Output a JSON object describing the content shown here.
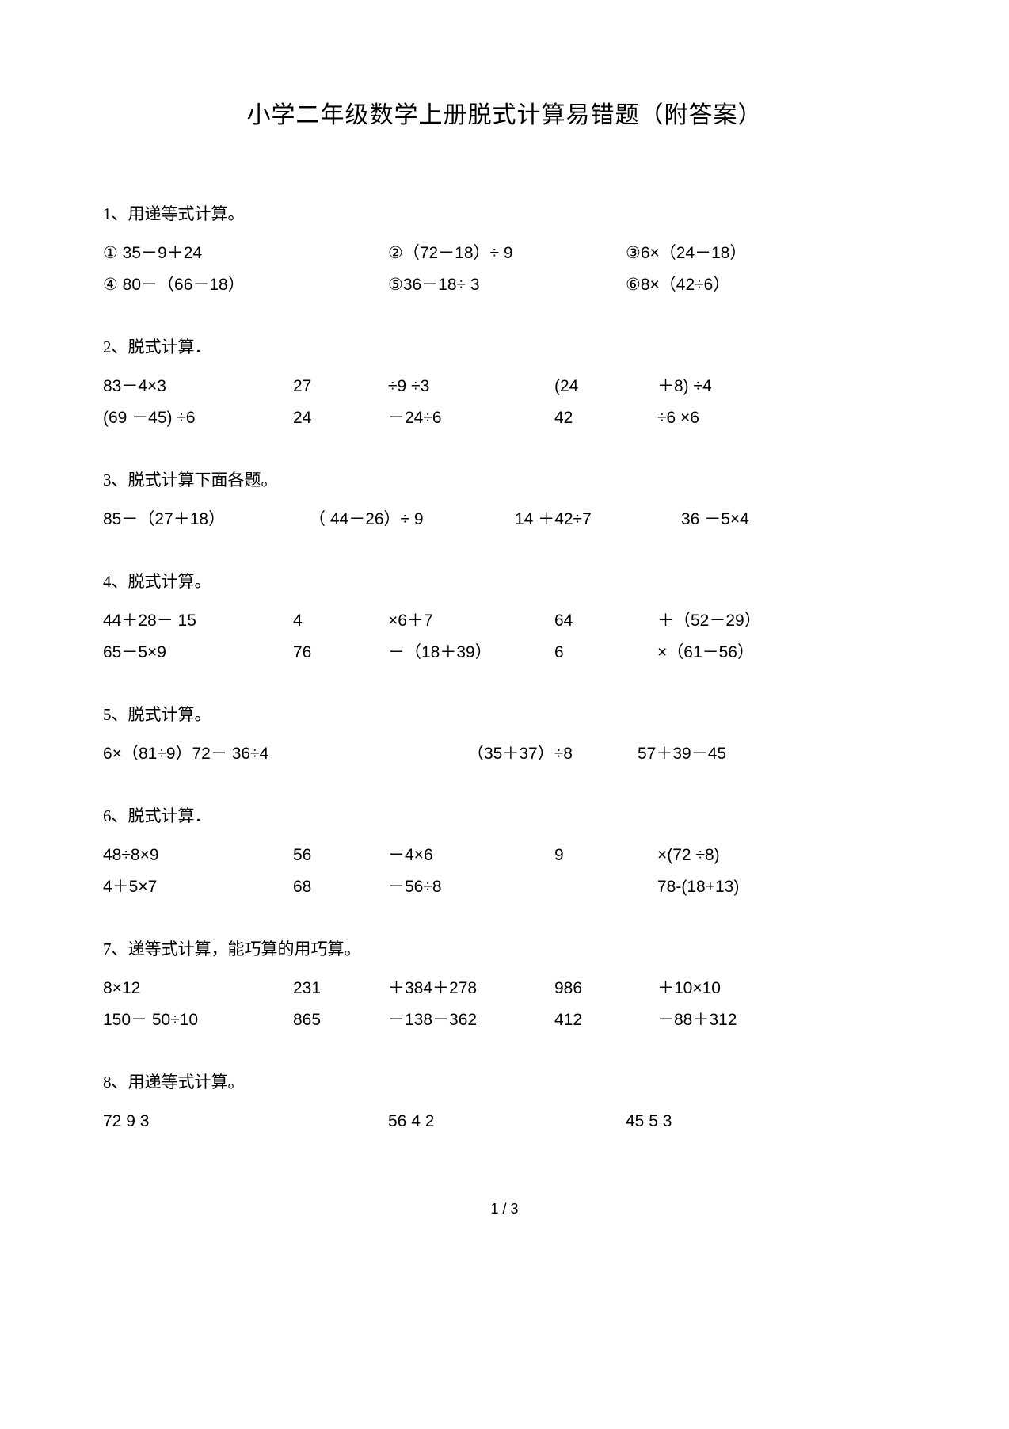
{
  "title": "小学二年级数学上册脱式计算易错题（附答案）",
  "sections": {
    "s1": {
      "label": "1、用递等式计算。",
      "r1": {
        "a": "① 35－9＋24",
        "b": "②（72－18）÷ 9",
        "c": "③6×（24－18）"
      },
      "r2": {
        "a": "④ 80－（66－18）",
        "b": "⑤36－18÷ 3",
        "c": "⑥8×（42÷6）"
      }
    },
    "s2": {
      "label": "2、脱式计算．",
      "r1": {
        "a": "83－4×3",
        "b": "27",
        "c": "÷9 ÷3",
        "d": "(24",
        "e": "＋8) ÷4"
      },
      "r2": {
        "a": "(69 －45)  ÷6",
        "b": "24",
        "c": "－24÷6",
        "d": "42",
        "e": "÷6 ×6"
      }
    },
    "s3": {
      "label": "3、脱式计算下面各题。",
      "r1": {
        "a": "85－（27＋18）",
        "b": "（ 44－26）÷ 9",
        "c": "14 ＋42÷7",
        "d": "36 －5×4"
      }
    },
    "s4": {
      "label": "4、脱式计算。",
      "r1": {
        "a": "44＋28－ 15",
        "b": "4",
        "c": "×6＋7",
        "d": "64",
        "e": "＋（52－29）"
      },
      "r2": {
        "a": "65－5×9",
        "b": "76",
        "c": "－（18＋39）",
        "d": "6",
        "e": "×（61－56）"
      }
    },
    "s5": {
      "label": "5、脱式计算。",
      "r1": {
        "a": "6×（81÷9）72－ 36÷4",
        "b": "（35＋37）÷8",
        "c": "57＋39－45"
      }
    },
    "s6": {
      "label": "6、脱式计算．",
      "r1": {
        "a": "48÷8×9",
        "b": "56",
        "c": "－4×6",
        "d": "9",
        "e": "×(72 ÷8)"
      },
      "r2": {
        "a": "4＋5×7",
        "b": "68",
        "c": "－56÷8",
        "d": "",
        "e": "78-(18+13)"
      }
    },
    "s7": {
      "label": "7、递等式计算，能巧算的用巧算。",
      "r1": {
        "a": "8×12",
        "b": "231",
        "c": "＋384＋278",
        "d": "986",
        "e": "＋10×10"
      },
      "r2": {
        "a": "150－ 50÷10",
        "b": "865",
        "c": "－138－362",
        "d": "412",
        "e": "－88＋312"
      }
    },
    "s8": {
      "label": "8、用递等式计算。",
      "r1": {
        "a": "72  9  3",
        "b": "56  4  2",
        "c": "45  5  3"
      }
    }
  },
  "pageNum": "1 / 3",
  "colors": {
    "background": "#ffffff",
    "text": "#000000"
  },
  "typography": {
    "title_fontsize": 30,
    "body_fontsize": 21,
    "font_family": "SimSun"
  }
}
